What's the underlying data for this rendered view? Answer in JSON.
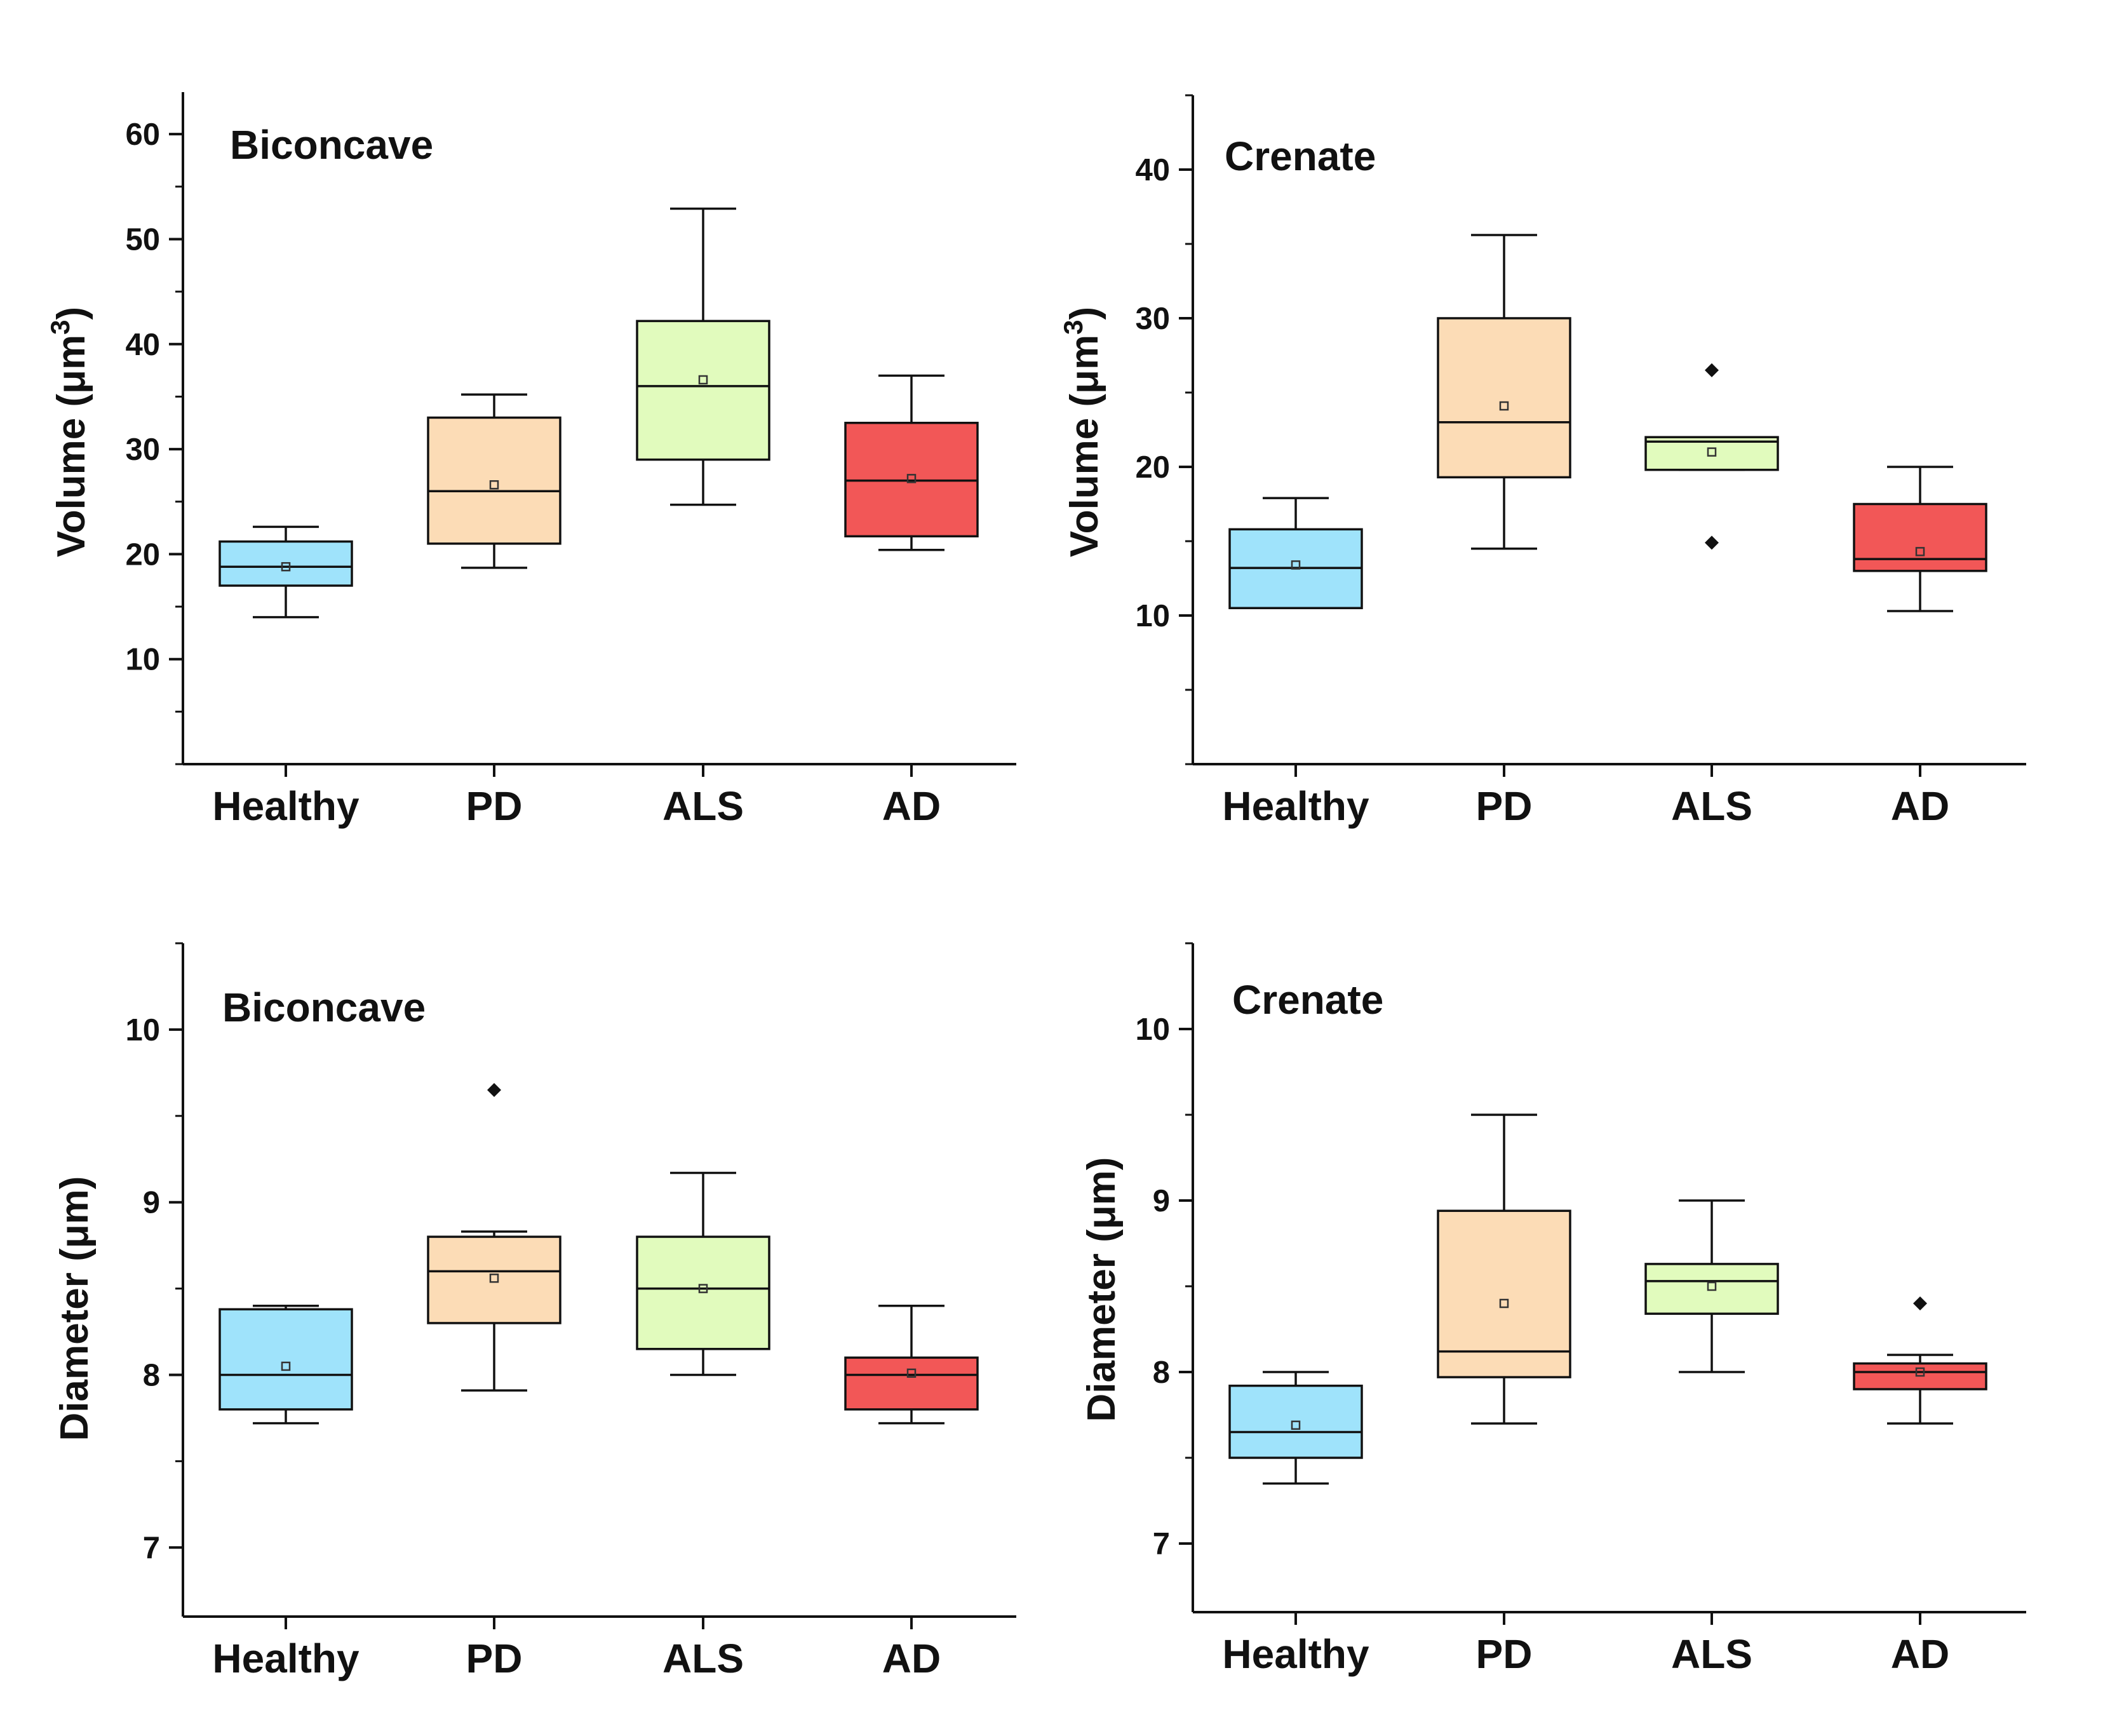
{
  "figure": {
    "background": "#ffffff"
  },
  "colors": {
    "Healthy": "#9fe3fb",
    "PD": "#fcdcb6",
    "ALS": "#e1fbbd",
    "AD": "#f25757"
  },
  "chart_data": [
    {
      "type": "box",
      "title": "Biconcave",
      "ylabel": "Volume (μm3)",
      "ylabel_base": "Volume (μm",
      "ylabel_sup": "3",
      "ylabel_close": ")",
      "ylim": [
        0,
        64
      ],
      "yticks": [
        10,
        20,
        30,
        40,
        50,
        60
      ],
      "ytick_labels": [
        "10",
        "20",
        "30",
        "40",
        "50",
        "60"
      ],
      "minor_step": 5,
      "categories": [
        "Healthy",
        "PD",
        "ALS",
        "AD"
      ],
      "boxes": [
        {
          "category": "Healthy",
          "whisker_low": 14,
          "q1": 17,
          "median": 18.8,
          "q3": 21.2,
          "whisker_high": 22.6,
          "mean": 18.8,
          "outliers": []
        },
        {
          "category": "PD",
          "whisker_low": 18.7,
          "q1": 21,
          "median": 26,
          "q3": 33,
          "whisker_high": 35.2,
          "mean": 26.6,
          "outliers": []
        },
        {
          "category": "ALS",
          "whisker_low": 24.7,
          "q1": 29,
          "median": 36,
          "q3": 42.2,
          "whisker_high": 52.9,
          "mean": 36.6,
          "outliers": []
        },
        {
          "category": "AD",
          "whisker_low": 20.4,
          "q1": 21.7,
          "median": 27,
          "q3": 32.5,
          "whisker_high": 37,
          "mean": 27.2,
          "outliers": []
        }
      ]
    },
    {
      "type": "box",
      "title": "Crenate",
      "ylabel": "Volume (μm3)",
      "ylabel_base": "Volume (μm",
      "ylabel_sup": "3",
      "ylabel_close": ")",
      "ylim": [
        0,
        45
      ],
      "yticks": [
        10,
        20,
        30,
        40
      ],
      "ytick_labels": [
        "10",
        "20",
        "30",
        "40"
      ],
      "minor_step": 5,
      "categories": [
        "Healthy",
        "PD",
        "ALS",
        "AD"
      ],
      "boxes": [
        {
          "category": "Healthy",
          "whisker_low": 10.5,
          "q1": 10.5,
          "median": 13.2,
          "q3": 15.8,
          "whisker_high": 17.9,
          "mean": 13.4,
          "outliers": []
        },
        {
          "category": "PD",
          "whisker_low": 14.5,
          "q1": 19.3,
          "median": 23,
          "q3": 30,
          "whisker_high": 35.6,
          "mean": 24.1,
          "outliers": []
        },
        {
          "category": "ALS",
          "whisker_low": 19.8,
          "q1": 19.8,
          "median": 21.7,
          "q3": 22,
          "whisker_high": 22,
          "mean": 21,
          "outliers": [
            26.5,
            14.9
          ]
        },
        {
          "category": "AD",
          "whisker_low": 10.3,
          "q1": 13,
          "median": 13.8,
          "q3": 17.5,
          "whisker_high": 20,
          "mean": 14.3,
          "outliers": []
        }
      ]
    },
    {
      "type": "box",
      "title": "Biconcave",
      "ylabel": "Diameter (μm)",
      "ylim": [
        6.6,
        10.5
      ],
      "yticks": [
        7,
        8,
        9,
        10
      ],
      "ytick_labels": [
        "7",
        "8",
        "9",
        "10"
      ],
      "minor_step": 0.5,
      "categories": [
        "Healthy",
        "PD",
        "ALS",
        "AD"
      ],
      "boxes": [
        {
          "category": "Healthy",
          "whisker_low": 7.72,
          "q1": 7.8,
          "median": 8,
          "q3": 8.38,
          "whisker_high": 8.4,
          "mean": 8.05,
          "outliers": []
        },
        {
          "category": "PD",
          "whisker_low": 7.91,
          "q1": 8.3,
          "median": 8.6,
          "q3": 8.8,
          "whisker_high": 8.83,
          "mean": 8.56,
          "outliers": [
            9.65
          ]
        },
        {
          "category": "ALS",
          "whisker_low": 8,
          "q1": 8.15,
          "median": 8.5,
          "q3": 8.8,
          "whisker_high": 9.17,
          "mean": 8.5,
          "outliers": []
        },
        {
          "category": "AD",
          "whisker_low": 7.72,
          "q1": 7.8,
          "median": 8,
          "q3": 8.1,
          "whisker_high": 8.4,
          "mean": 8.01,
          "outliers": []
        }
      ]
    },
    {
      "type": "box",
      "title": "Crenate",
      "ylabel": "Diameter (μm)",
      "ylim": [
        6.6,
        10.5
      ],
      "yticks": [
        7,
        8,
        9,
        10
      ],
      "ytick_labels": [
        "7",
        "8",
        "9",
        "10"
      ],
      "minor_step": 0.5,
      "categories": [
        "Healthy",
        "PD",
        "ALS",
        "AD"
      ],
      "boxes": [
        {
          "category": "Healthy",
          "whisker_low": 7.35,
          "q1": 7.5,
          "median": 7.65,
          "q3": 7.92,
          "whisker_high": 8,
          "mean": 7.69,
          "outliers": []
        },
        {
          "category": "PD",
          "whisker_low": 7.7,
          "q1": 7.97,
          "median": 8.12,
          "q3": 8.94,
          "whisker_high": 9.5,
          "mean": 8.4,
          "outliers": []
        },
        {
          "category": "ALS",
          "whisker_low": 8,
          "q1": 8.34,
          "median": 8.53,
          "q3": 8.63,
          "whisker_high": 9,
          "mean": 8.5,
          "outliers": []
        },
        {
          "category": "AD",
          "whisker_low": 7.7,
          "q1": 7.9,
          "median": 8,
          "q3": 8.05,
          "whisker_high": 8.1,
          "mean": 8,
          "outliers": [
            8.4
          ]
        }
      ]
    }
  ]
}
